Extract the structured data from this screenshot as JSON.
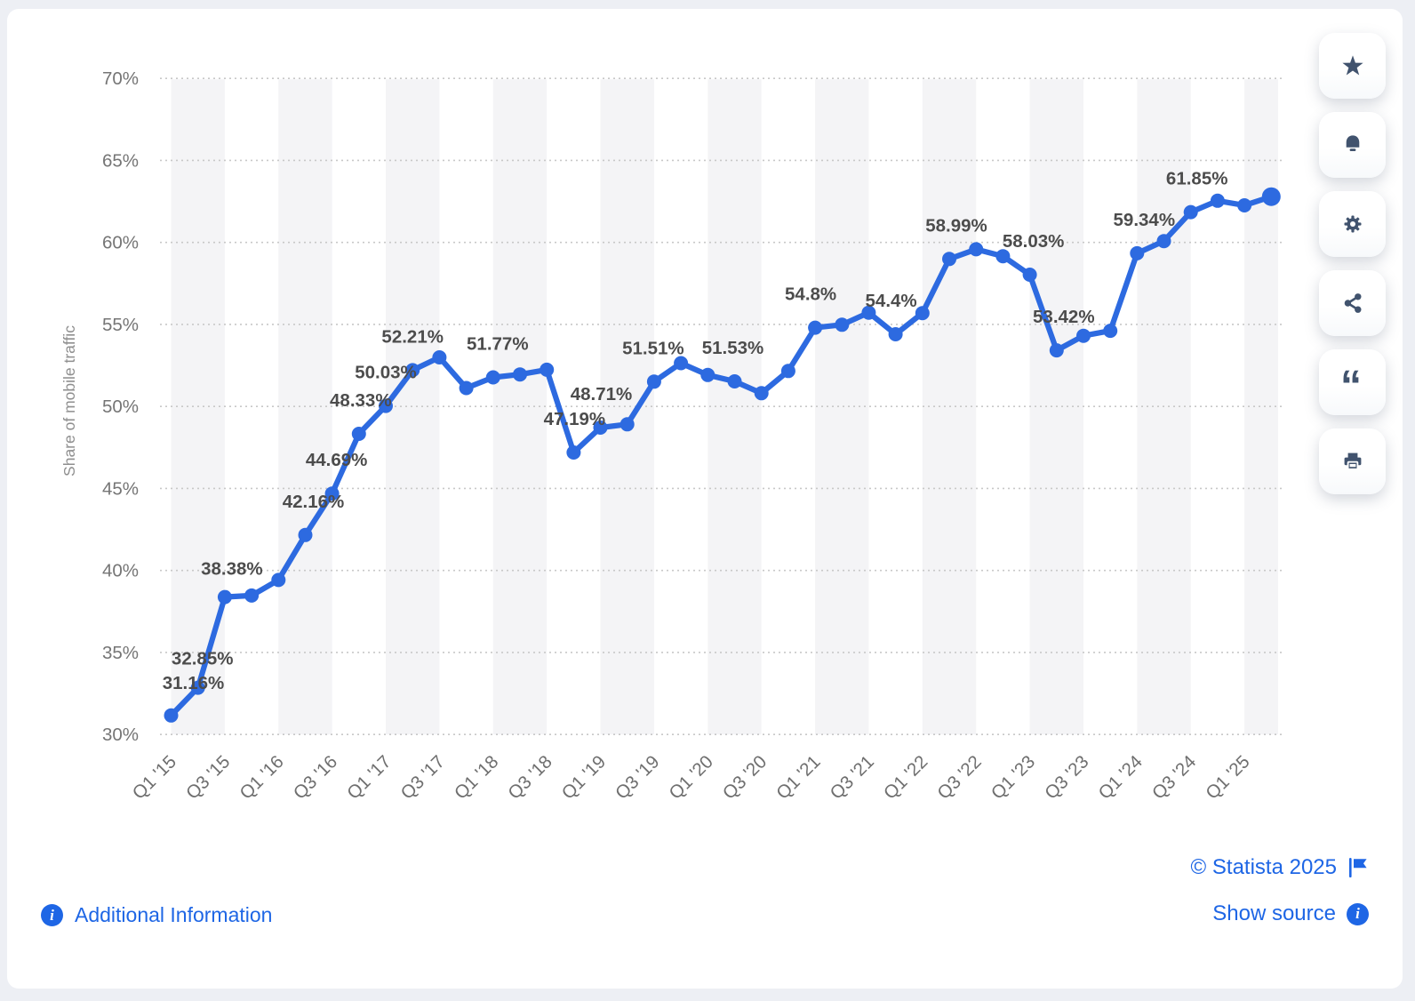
{
  "page": {
    "background": "#edeff4",
    "card_background": "#ffffff"
  },
  "chart_data": {
    "type": "line",
    "title": "",
    "xlabel": "",
    "ylabel": "Share of mobile traffic",
    "ylim": [
      30,
      70
    ],
    "grid": "horizontal-dotted",
    "background_bands": "alternating-vertical-2-quarters",
    "legend": "none",
    "colors": {
      "line": "#2d6ae0",
      "point": "#2d6ae0",
      "band": "#f4f4f6",
      "gridline": "#c8c8c8",
      "data_label": "#4c4c4c",
      "axis_text": "#757575"
    },
    "y_ticks": [
      {
        "value": 70,
        "label": "70%"
      },
      {
        "value": 65,
        "label": "65%"
      },
      {
        "value": 60,
        "label": "60%"
      },
      {
        "value": 55,
        "label": "55%"
      },
      {
        "value": 50,
        "label": "50%"
      },
      {
        "value": 45,
        "label": "45%"
      },
      {
        "value": 40,
        "label": "40%"
      },
      {
        "value": 35,
        "label": "35%"
      },
      {
        "value": 30,
        "label": "30%"
      }
    ],
    "x_ticks": [
      {
        "index": 0,
        "label": "Q1 '15"
      },
      {
        "index": 2,
        "label": "Q3 '15"
      },
      {
        "index": 4,
        "label": "Q1 '16"
      },
      {
        "index": 6,
        "label": "Q3 '16"
      },
      {
        "index": 8,
        "label": "Q1 '17"
      },
      {
        "index": 10,
        "label": "Q3 '17"
      },
      {
        "index": 12,
        "label": "Q1 '18"
      },
      {
        "index": 14,
        "label": "Q3 '18"
      },
      {
        "index": 16,
        "label": "Q1 '19"
      },
      {
        "index": 18,
        "label": "Q3 '19"
      },
      {
        "index": 20,
        "label": "Q1 '20"
      },
      {
        "index": 22,
        "label": "Q3 '20"
      },
      {
        "index": 24,
        "label": "Q1 '21"
      },
      {
        "index": 26,
        "label": "Q3 '21"
      },
      {
        "index": 28,
        "label": "Q1 '22"
      },
      {
        "index": 30,
        "label": "Q3 '22"
      },
      {
        "index": 32,
        "label": "Q1 '23"
      },
      {
        "index": 34,
        "label": "Q3 '23"
      },
      {
        "index": 36,
        "label": "Q1 '24"
      },
      {
        "index": 38,
        "label": "Q3 '24"
      },
      {
        "index": 40,
        "label": "Q1 '25"
      }
    ],
    "series": [
      {
        "name": "Share of mobile traffic",
        "points": [
          {
            "v": 31.16,
            "label": "31.16%",
            "dx": 25,
            "dy": 1
          },
          {
            "v": 32.85,
            "label": "32.85%",
            "dx": 5,
            "dy": 5
          },
          {
            "v": 38.38,
            "label": "38.38%",
            "dx": 8,
            "dy": 6
          },
          {
            "v": 38.47
          },
          {
            "v": 39.42
          },
          {
            "v": 42.16,
            "label": "42.16%",
            "dx": 9
          },
          {
            "v": 44.69,
            "label": "44.69%",
            "dx": 5
          },
          {
            "v": 48.33,
            "label": "48.33%",
            "dx": 2
          },
          {
            "v": 50.03,
            "label": "50.03%"
          },
          {
            "v": 52.21,
            "label": "52.21%"
          },
          {
            "v": 52.99
          },
          {
            "v": 51.12
          },
          {
            "v": 51.77,
            "label": "51.77%",
            "dx": 5
          },
          {
            "v": 51.95
          },
          {
            "v": 52.24
          },
          {
            "v": 47.19,
            "label": "47.19%",
            "dx": 1
          },
          {
            "v": 48.71,
            "label": "48.71%",
            "dx": 1
          },
          {
            "v": 48.91
          },
          {
            "v": 51.51,
            "label": "51.51%",
            "dx": -1
          },
          {
            "v": 52.64
          },
          {
            "v": 51.92
          },
          {
            "v": 51.53,
            "label": "51.53%",
            "dx": -2
          },
          {
            "v": 50.81
          },
          {
            "v": 52.16
          },
          {
            "v": 54.8,
            "label": "54.8%",
            "dx": -5
          },
          {
            "v": 54.98
          },
          {
            "v": 55.72
          },
          {
            "v": 54.4,
            "label": "54.4%",
            "dx": -5
          },
          {
            "v": 55.69
          },
          {
            "v": 58.99,
            "label": "58.99%",
            "dx": 8
          },
          {
            "v": 59.58
          },
          {
            "v": 59.16
          },
          {
            "v": 58.03,
            "label": "58.03%",
            "dx": 4
          },
          {
            "v": 53.42,
            "label": "53.42%",
            "dx": 8
          },
          {
            "v": 54.31
          },
          {
            "v": 54.61
          },
          {
            "v": 59.34,
            "label": "59.34%",
            "dx": 8
          },
          {
            "v": 60.08
          },
          {
            "v": 61.85,
            "label": "61.85%",
            "dx": 7
          },
          {
            "v": 62.54
          },
          {
            "v": 62.26
          },
          {
            "v": 62.79
          }
        ]
      }
    ]
  },
  "footer": {
    "additional_information": "Additional Information",
    "copyright": "© Statista 2025",
    "show_source": "Show source",
    "link_color": "#1e66e5"
  },
  "sidebar": {
    "buttons": [
      {
        "id": "favorite",
        "icon": "star-icon"
      },
      {
        "id": "alerts",
        "icon": "bell-icon"
      },
      {
        "id": "settings",
        "icon": "gear-icon"
      },
      {
        "id": "share",
        "icon": "share-icon"
      },
      {
        "id": "cite",
        "icon": "quote-icon"
      },
      {
        "id": "print",
        "icon": "printer-icon"
      }
    ],
    "icon_color": "#41536e"
  }
}
